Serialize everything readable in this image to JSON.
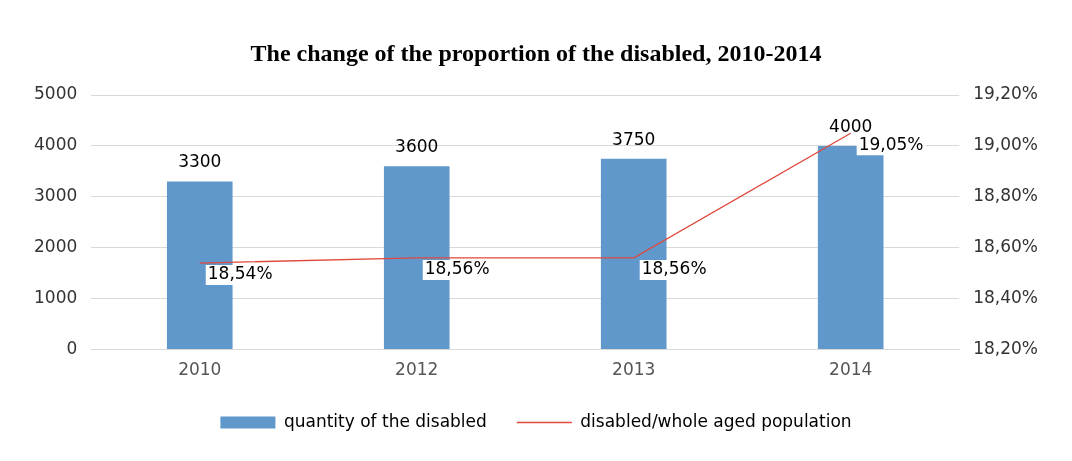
{
  "chart_data": {
    "type": "bar",
    "title": "The change of the proportion of the disabled, 2010-2014",
    "categories": [
      "2010",
      "2012",
      "2013",
      "2014"
    ],
    "series": [
      {
        "name": "quantity of the disabled",
        "color": "#6198cc",
        "values": [
          3300,
          3600,
          3750,
          4000
        ],
        "value_labels": [
          "3300",
          "3600",
          "3750",
          "4000"
        ]
      },
      {
        "name": "disabled/whole aged population",
        "type": "line",
        "axis": "y2",
        "color": "#e0483c",
        "values": [
          18.54,
          18.56,
          18.56,
          19.05
        ],
        "value_labels": [
          "18,54%",
          "18,56%",
          "18,56%",
          "19,05%"
        ]
      }
    ],
    "ylim": [
      0,
      5000
    ],
    "yticks": [
      0,
      1000,
      2000,
      3000,
      4000,
      5000
    ],
    "y2lim": [
      18.2,
      19.2
    ],
    "y2ticks": [
      {
        "value": 18.2,
        "label": "18,20%"
      },
      {
        "value": 18.4,
        "label": "18,40%"
      },
      {
        "value": 18.6,
        "label": "18,60%"
      },
      {
        "value": 18.8,
        "label": "18,80%"
      },
      {
        "value": 19.0,
        "label": "19,00%"
      },
      {
        "value": 19.2,
        "label": "19,20%"
      }
    ],
    "grid": "y",
    "legend": "bottom"
  }
}
